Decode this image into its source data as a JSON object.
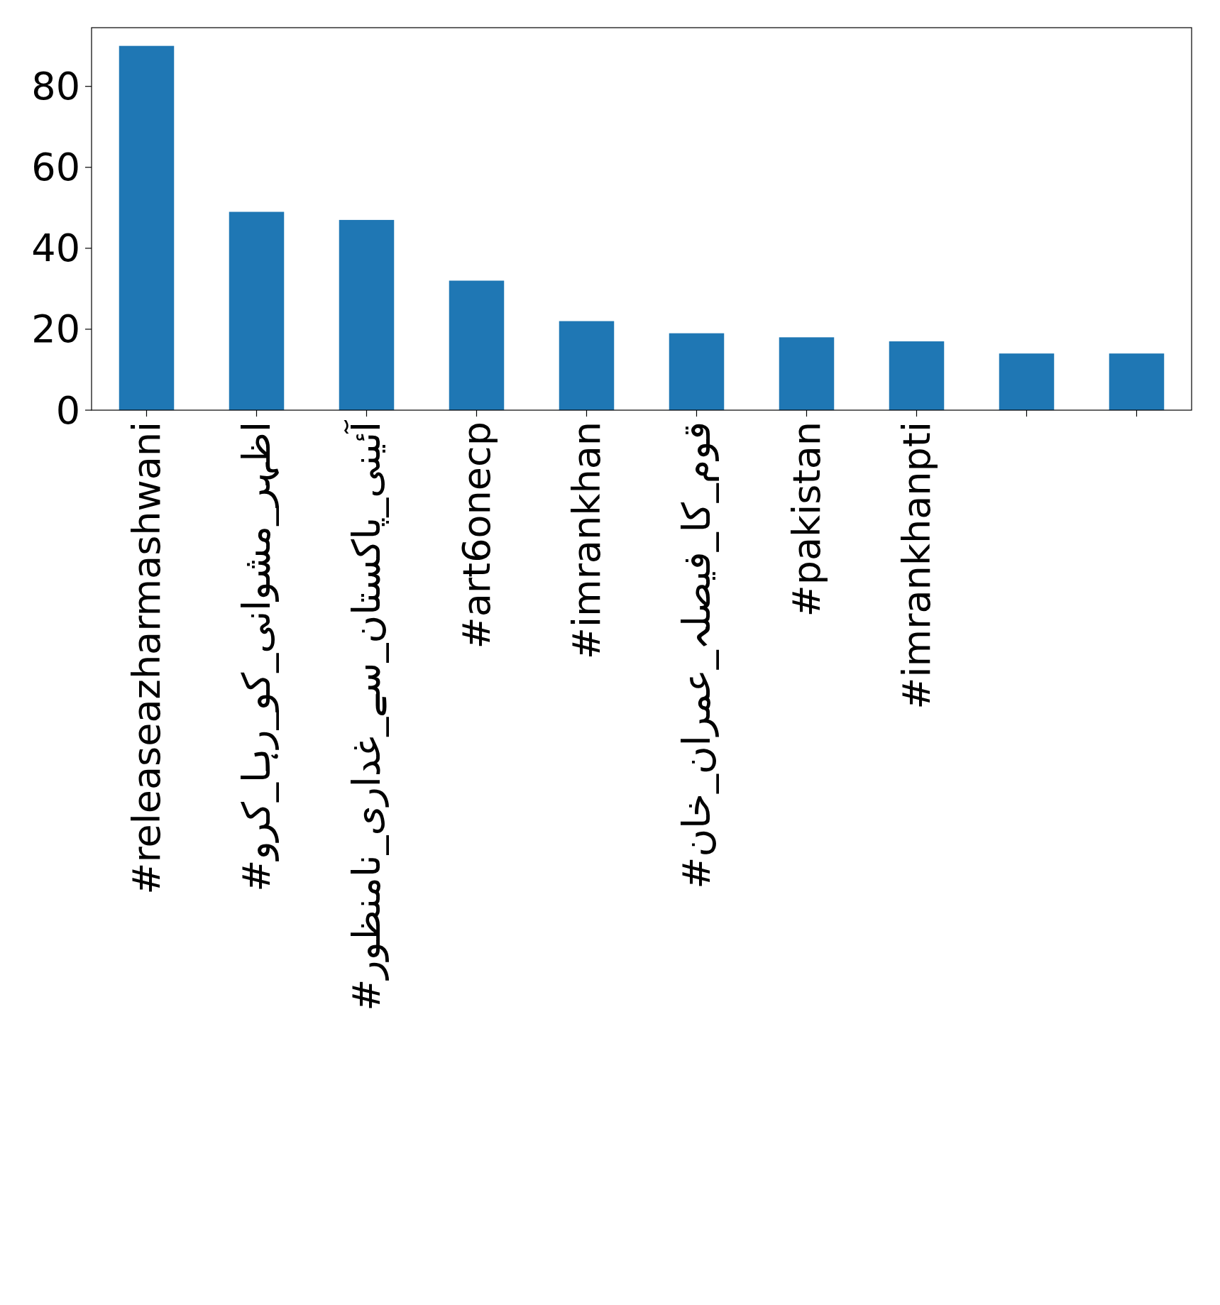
{
  "chart_data": {
    "type": "bar",
    "categories": [
      "#releaseazharmashwani",
      "#اظہر_مشوانی_کو_رہا_کرو",
      "#آئینی_پاکستان_سے_غداری_نامنظور",
      "#art6onecp",
      "#imrankhan",
      "#قوم_کا_فیصلہ_عمران_خان",
      "#pakistan",
      "#imrankhanpti",
      null,
      null
    ],
    "values": [
      90,
      49,
      47,
      32,
      22,
      19,
      18,
      17,
      14,
      14
    ],
    "color": "#1f77b4",
    "ylim": [
      0,
      94.5
    ],
    "yticks": [
      0,
      20,
      40,
      60,
      80
    ]
  }
}
